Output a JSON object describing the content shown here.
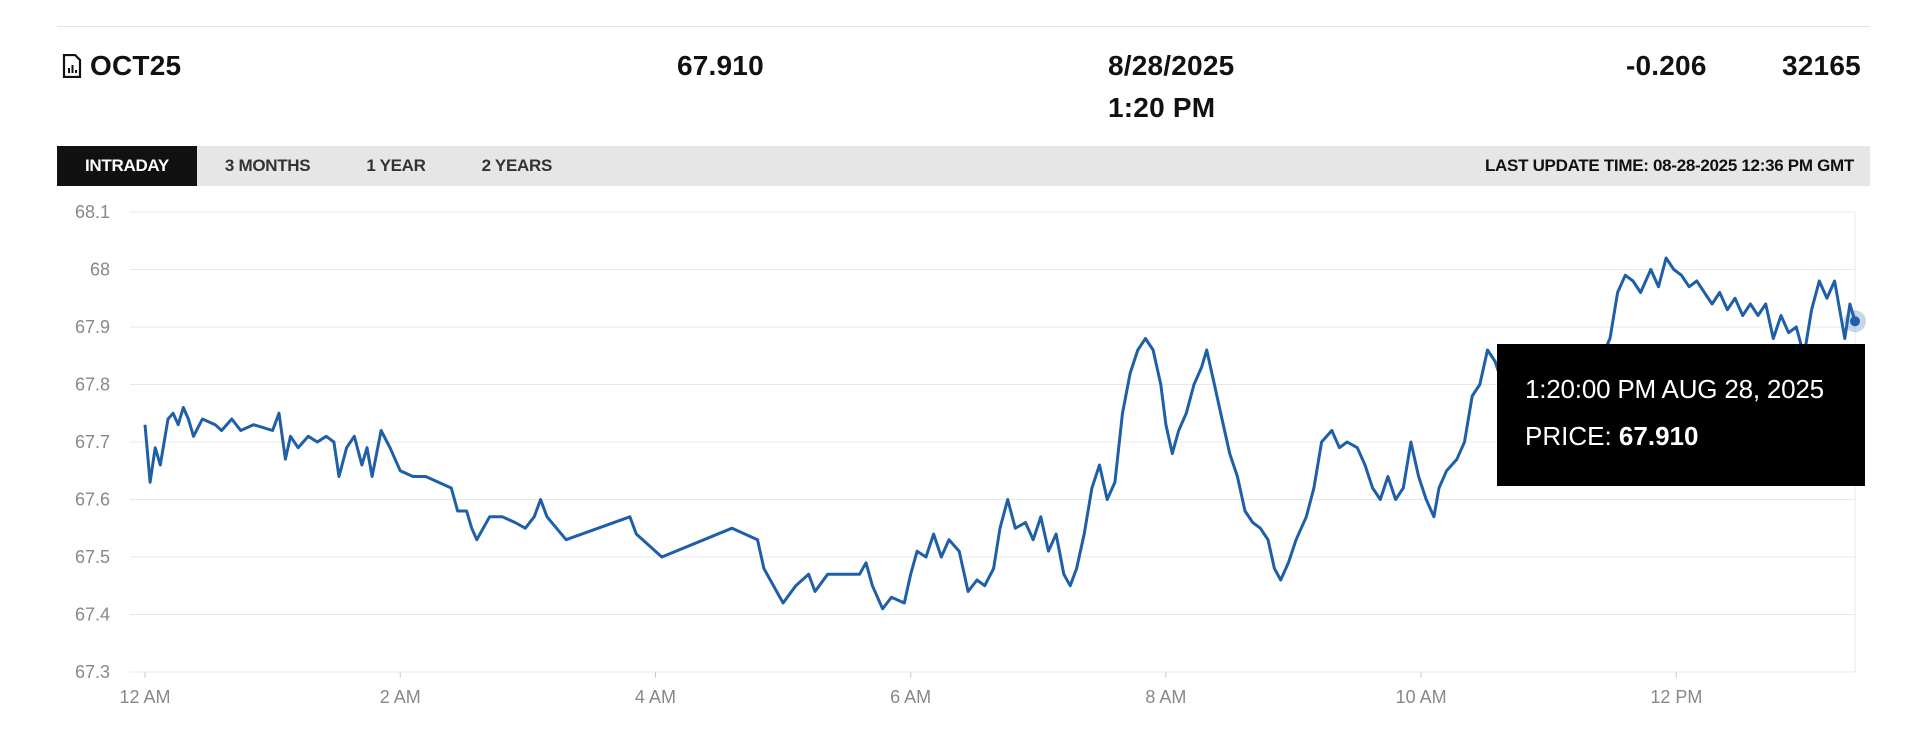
{
  "header": {
    "contract": "OCT25",
    "last_price": "67.910",
    "date": "8/28/2025",
    "time": "1:20 PM",
    "change": "-0.206",
    "volume": "32165"
  },
  "tabs": [
    {
      "label": "INTRADAY",
      "active": true
    },
    {
      "label": "3 MONTHS",
      "active": false
    },
    {
      "label": "1 YEAR",
      "active": false
    },
    {
      "label": "2 YEARS",
      "active": false
    }
  ],
  "last_update": "LAST UPDATE TIME: 08-28-2025 12:36 PM GMT",
  "tooltip": {
    "time": "1:20:00 PM AUG 28, 2025",
    "price_label": "PRICE:",
    "price_value": "67.910"
  },
  "colors": {
    "line": "#1f5fa8",
    "marker": "#1f5fa8",
    "grid": "#e8e8e8"
  },
  "chart_data": {
    "type": "line",
    "title": "",
    "xlabel": "",
    "ylabel": "",
    "ylim": [
      67.3,
      68.1
    ],
    "xlim_hours": [
      0,
      13.4
    ],
    "grid": true,
    "y_ticks": [
      "68.1",
      "68",
      "67.9",
      "67.8",
      "67.7",
      "67.6",
      "67.5",
      "67.4",
      "67.3"
    ],
    "x_ticks": [
      {
        "label": "12 AM",
        "hour": 0
      },
      {
        "label": "2 AM",
        "hour": 2
      },
      {
        "label": "4 AM",
        "hour": 4
      },
      {
        "label": "6 AM",
        "hour": 6
      },
      {
        "label": "8 AM",
        "hour": 8
      },
      {
        "label": "10 AM",
        "hour": 10
      },
      {
        "label": "12 PM",
        "hour": 12
      }
    ],
    "series": [
      {
        "points": [
          [
            0.0,
            67.73
          ],
          [
            0.04,
            67.63
          ],
          [
            0.08,
            67.69
          ],
          [
            0.12,
            67.66
          ],
          [
            0.18,
            67.74
          ],
          [
            0.22,
            67.75
          ],
          [
            0.26,
            67.73
          ],
          [
            0.3,
            67.76
          ],
          [
            0.34,
            67.74
          ],
          [
            0.38,
            67.71
          ],
          [
            0.45,
            67.74
          ],
          [
            0.55,
            67.73
          ],
          [
            0.6,
            67.72
          ],
          [
            0.68,
            67.74
          ],
          [
            0.75,
            67.72
          ],
          [
            0.85,
            67.73
          ],
          [
            1.0,
            67.72
          ],
          [
            1.05,
            67.75
          ],
          [
            1.1,
            67.67
          ],
          [
            1.14,
            67.71
          ],
          [
            1.2,
            67.69
          ],
          [
            1.28,
            67.71
          ],
          [
            1.35,
            67.7
          ],
          [
            1.42,
            67.71
          ],
          [
            1.48,
            67.7
          ],
          [
            1.52,
            67.64
          ],
          [
            1.58,
            67.69
          ],
          [
            1.64,
            67.71
          ],
          [
            1.7,
            67.66
          ],
          [
            1.74,
            67.69
          ],
          [
            1.78,
            67.64
          ],
          [
            1.85,
            67.72
          ],
          [
            1.92,
            67.69
          ],
          [
            2.0,
            67.65
          ],
          [
            2.1,
            67.64
          ],
          [
            2.2,
            67.64
          ],
          [
            2.4,
            67.62
          ],
          [
            2.45,
            67.58
          ],
          [
            2.52,
            67.58
          ],
          [
            2.56,
            67.55
          ],
          [
            2.6,
            67.53
          ],
          [
            2.7,
            67.57
          ],
          [
            2.8,
            67.57
          ],
          [
            2.9,
            67.56
          ],
          [
            2.98,
            67.55
          ],
          [
            3.05,
            67.57
          ],
          [
            3.1,
            67.6
          ],
          [
            3.15,
            67.57
          ],
          [
            3.3,
            67.53
          ],
          [
            3.8,
            67.57
          ],
          [
            3.85,
            67.54
          ],
          [
            4.05,
            67.5
          ],
          [
            4.6,
            67.55
          ],
          [
            4.7,
            67.54
          ],
          [
            4.8,
            67.53
          ],
          [
            4.85,
            67.48
          ],
          [
            4.95,
            67.44
          ],
          [
            5.0,
            67.42
          ],
          [
            5.1,
            67.45
          ],
          [
            5.2,
            67.47
          ],
          [
            5.25,
            67.44
          ],
          [
            5.35,
            67.47
          ],
          [
            5.6,
            67.47
          ],
          [
            5.65,
            67.49
          ],
          [
            5.7,
            67.45
          ],
          [
            5.78,
            67.41
          ],
          [
            5.85,
            67.43
          ],
          [
            5.95,
            67.42
          ],
          [
            6.0,
            67.47
          ],
          [
            6.05,
            67.51
          ],
          [
            6.12,
            67.5
          ],
          [
            6.18,
            67.54
          ],
          [
            6.24,
            67.5
          ],
          [
            6.3,
            67.53
          ],
          [
            6.38,
            67.51
          ],
          [
            6.45,
            67.44
          ],
          [
            6.52,
            67.46
          ],
          [
            6.58,
            67.45
          ],
          [
            6.65,
            67.48
          ],
          [
            6.7,
            67.55
          ],
          [
            6.76,
            67.6
          ],
          [
            6.82,
            67.55
          ],
          [
            6.9,
            67.56
          ],
          [
            6.96,
            67.53
          ],
          [
            7.02,
            67.57
          ],
          [
            7.08,
            67.51
          ],
          [
            7.14,
            67.54
          ],
          [
            7.2,
            67.47
          ],
          [
            7.25,
            67.45
          ],
          [
            7.3,
            67.48
          ],
          [
            7.36,
            67.54
          ],
          [
            7.42,
            67.62
          ],
          [
            7.48,
            67.66
          ],
          [
            7.54,
            67.6
          ],
          [
            7.6,
            67.63
          ],
          [
            7.66,
            67.75
          ],
          [
            7.72,
            67.82
          ],
          [
            7.78,
            67.86
          ],
          [
            7.84,
            67.88
          ],
          [
            7.9,
            67.86
          ],
          [
            7.96,
            67.8
          ],
          [
            8.0,
            67.73
          ],
          [
            8.05,
            67.68
          ],
          [
            8.1,
            67.72
          ],
          [
            8.16,
            67.75
          ],
          [
            8.22,
            67.8
          ],
          [
            8.28,
            67.83
          ],
          [
            8.32,
            67.86
          ],
          [
            8.38,
            67.8
          ],
          [
            8.44,
            67.74
          ],
          [
            8.5,
            67.68
          ],
          [
            8.56,
            67.64
          ],
          [
            8.62,
            67.58
          ],
          [
            8.68,
            67.56
          ],
          [
            8.74,
            67.55
          ],
          [
            8.8,
            67.53
          ],
          [
            8.85,
            67.48
          ],
          [
            8.9,
            67.46
          ],
          [
            8.96,
            67.49
          ],
          [
            9.02,
            67.53
          ],
          [
            9.1,
            67.57
          ],
          [
            9.16,
            67.62
          ],
          [
            9.22,
            67.7
          ],
          [
            9.3,
            67.72
          ],
          [
            9.36,
            67.69
          ],
          [
            9.42,
            67.7
          ],
          [
            9.5,
            67.69
          ],
          [
            9.56,
            67.66
          ],
          [
            9.62,
            67.62
          ],
          [
            9.68,
            67.6
          ],
          [
            9.74,
            67.64
          ],
          [
            9.8,
            67.6
          ],
          [
            9.86,
            67.62
          ],
          [
            9.92,
            67.7
          ],
          [
            9.98,
            67.64
          ],
          [
            10.04,
            67.6
          ],
          [
            10.1,
            67.57
          ],
          [
            10.14,
            67.62
          ],
          [
            10.2,
            67.65
          ],
          [
            10.28,
            67.67
          ],
          [
            10.34,
            67.7
          ],
          [
            10.4,
            67.78
          ],
          [
            10.46,
            67.8
          ],
          [
            10.52,
            67.86
          ],
          [
            10.58,
            67.84
          ],
          [
            10.64,
            67.8
          ],
          [
            10.7,
            67.84
          ],
          [
            10.78,
            67.81
          ],
          [
            10.86,
            67.85
          ],
          [
            10.92,
            67.8
          ],
          [
            10.98,
            67.76
          ],
          [
            11.02,
            67.72
          ],
          [
            11.1,
            67.72
          ],
          [
            11.2,
            67.76
          ],
          [
            11.3,
            67.8
          ],
          [
            11.4,
            67.84
          ],
          [
            11.48,
            67.88
          ],
          [
            11.54,
            67.96
          ],
          [
            11.6,
            67.99
          ],
          [
            11.66,
            67.98
          ],
          [
            11.72,
            67.96
          ],
          [
            11.8,
            68.0
          ],
          [
            11.86,
            67.97
          ],
          [
            11.92,
            68.02
          ],
          [
            11.98,
            68.0
          ],
          [
            12.04,
            67.99
          ],
          [
            12.1,
            67.97
          ],
          [
            12.16,
            67.98
          ],
          [
            12.22,
            67.96
          ],
          [
            12.28,
            67.94
          ],
          [
            12.34,
            67.96
          ],
          [
            12.4,
            67.93
          ],
          [
            12.46,
            67.95
          ],
          [
            12.52,
            67.92
          ],
          [
            12.58,
            67.94
          ],
          [
            12.64,
            67.92
          ],
          [
            12.7,
            67.94
          ],
          [
            12.76,
            67.88
          ],
          [
            12.82,
            67.92
          ],
          [
            12.88,
            67.89
          ],
          [
            12.94,
            67.9
          ],
          [
            13.0,
            67.85
          ],
          [
            13.06,
            67.93
          ],
          [
            13.12,
            67.98
          ],
          [
            13.18,
            67.95
          ],
          [
            13.24,
            67.98
          ],
          [
            13.28,
            67.93
          ],
          [
            13.32,
            67.88
          ],
          [
            13.36,
            67.94
          ],
          [
            13.4,
            67.91
          ]
        ]
      }
    ]
  }
}
